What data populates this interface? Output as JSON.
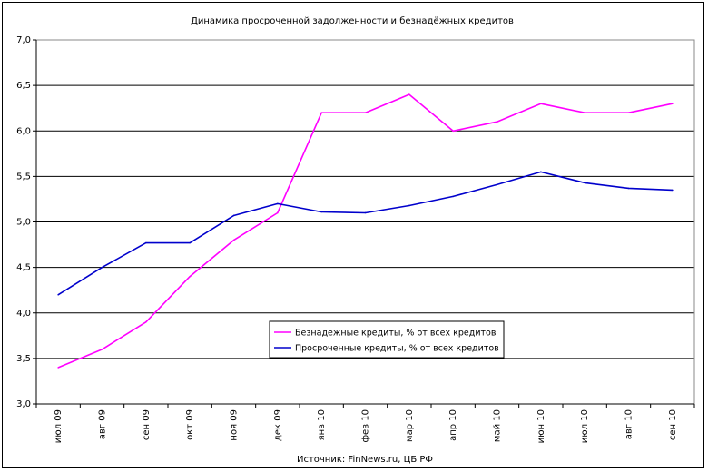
{
  "chart_data": {
    "type": "line",
    "title": "Динамика просроченной задолженности и безнадёжных кредитов",
    "source_note": "Источник: FinNews.ru, ЦБ РФ",
    "categories": [
      "июл 09",
      "авг 09",
      "сен 09",
      "окт 09",
      "ноя 09",
      "дек 09",
      "янв 10",
      "фев 10",
      "мар 10",
      "апр 10",
      "май 10",
      "июн 10",
      "июл 10",
      "авг 10",
      "сен 10"
    ],
    "y_ticks": [
      "3,0",
      "3,5",
      "4,0",
      "4,5",
      "5,0",
      "5,5",
      "6,0",
      "6,5",
      "7,0"
    ],
    "ylim": [
      3.0,
      7.0
    ],
    "grid": "horizontal",
    "legend_position": "center-right",
    "series": [
      {
        "name": "Безнадёжные кредиты, % от всех кредитов",
        "color": "#ff00ff",
        "values": [
          3.4,
          3.6,
          3.9,
          4.4,
          4.8,
          5.1,
          6.2,
          6.2,
          6.4,
          6.0,
          6.1,
          6.3,
          6.2,
          6.2,
          6.3
        ]
      },
      {
        "name": "Просроченные кредиты, % от всех кредитов",
        "color": "#0000cc",
        "values": [
          4.2,
          4.5,
          4.77,
          4.77,
          5.07,
          5.2,
          5.11,
          5.1,
          5.18,
          5.28,
          5.41,
          5.55,
          5.43,
          5.37,
          5.35
        ]
      }
    ]
  }
}
